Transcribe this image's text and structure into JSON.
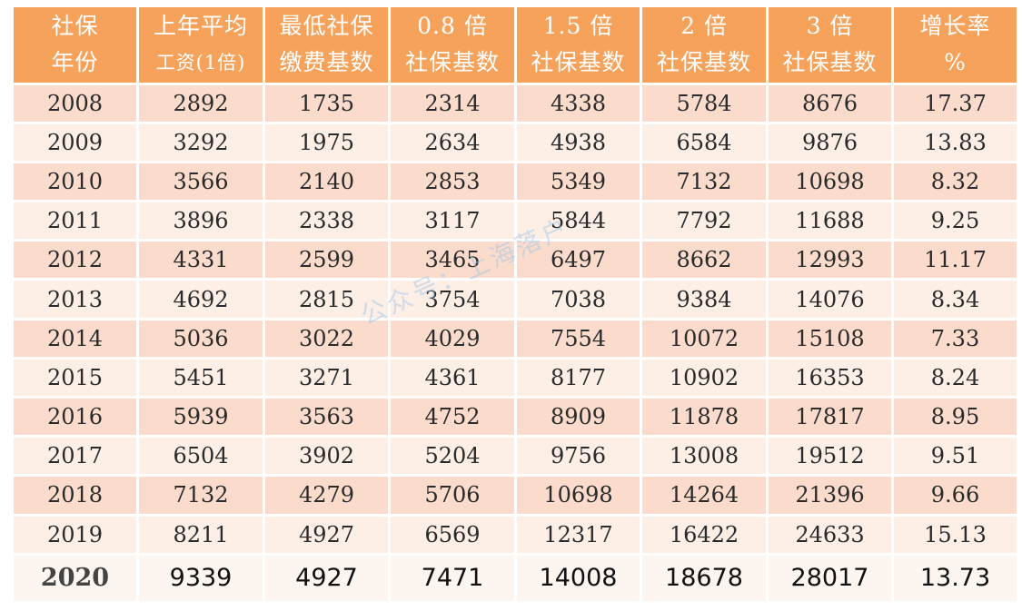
{
  "table": {
    "headers": [
      [
        "社保",
        "年份"
      ],
      [
        "上年平均",
        "工资(1倍)"
      ],
      [
        "最低社保",
        "缴费基数"
      ],
      [
        "0.8 倍",
        "社保基数"
      ],
      [
        "1.5 倍",
        "社保基数"
      ],
      [
        "2 倍",
        "社保基数"
      ],
      [
        "3 倍",
        "社保基数"
      ],
      [
        "增长率",
        "%"
      ]
    ],
    "rows": [
      [
        "2008",
        "2892",
        "1735",
        "2314",
        "4338",
        "5784",
        "8676",
        "17.37"
      ],
      [
        "2009",
        "3292",
        "1975",
        "2634",
        "4938",
        "6584",
        "9876",
        "13.83"
      ],
      [
        "2010",
        "3566",
        "2140",
        "2853",
        "5349",
        "7132",
        "10698",
        "8.32"
      ],
      [
        "2011",
        "3896",
        "2338",
        "3117",
        "5844",
        "7792",
        "11688",
        "9.25"
      ],
      [
        "2012",
        "4331",
        "2599",
        "3465",
        "6497",
        "8662",
        "12993",
        "11.17"
      ],
      [
        "2013",
        "4692",
        "2815",
        "3754",
        "7038",
        "9384",
        "14076",
        "8.34"
      ],
      [
        "2014",
        "5036",
        "3022",
        "4029",
        "7554",
        "10072",
        "15108",
        "7.33"
      ],
      [
        "2015",
        "5451",
        "3271",
        "4361",
        "8177",
        "10902",
        "16353",
        "8.24"
      ],
      [
        "2016",
        "5939",
        "3563",
        "4752",
        "8909",
        "11878",
        "17817",
        "8.95"
      ],
      [
        "2017",
        "6504",
        "3902",
        "5204",
        "9756",
        "13008",
        "19512",
        "9.51"
      ],
      [
        "2018",
        "7132",
        "4279",
        "5706",
        "10698",
        "14264",
        "21396",
        "9.66"
      ],
      [
        "2019",
        "8211",
        "4927",
        "6569",
        "12317",
        "16422",
        "24633",
        "15.13"
      ],
      [
        "2020",
        "9339",
        "4927",
        "7471",
        "14008",
        "18678",
        "28017",
        "13.73"
      ]
    ]
  },
  "watermark": "公众号：上海落户",
  "colors": {
    "header_bg": "#f7a25a",
    "row_odd": "#fbdccc",
    "row_even": "#fdeee6",
    "header_text": "#ffffff"
  }
}
